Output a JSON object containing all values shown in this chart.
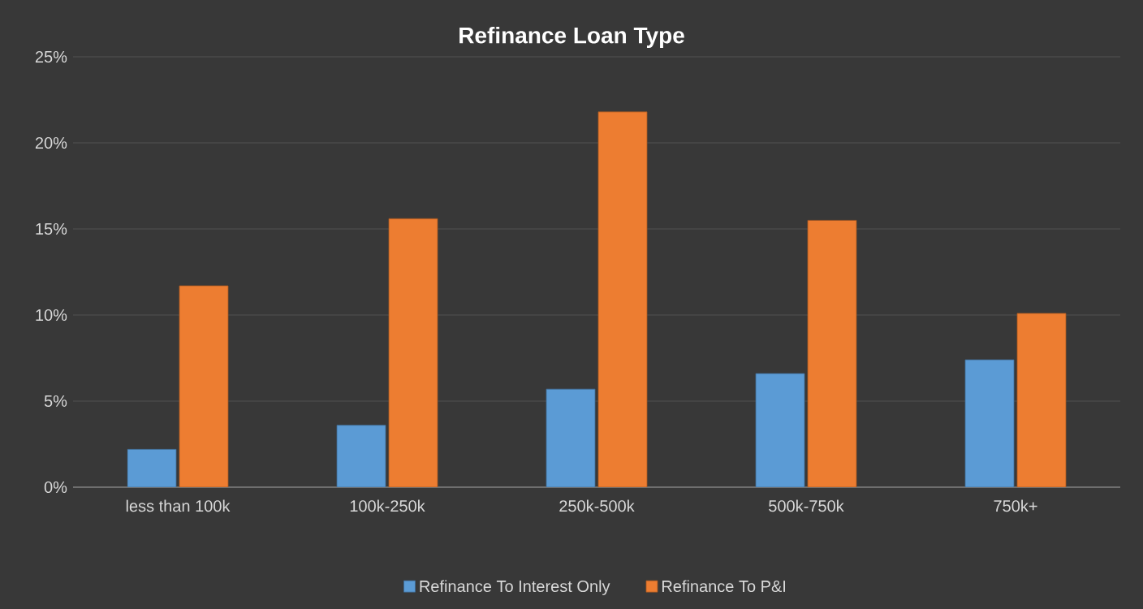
{
  "chart_data": {
    "type": "bar",
    "title": "Refinance Loan Type",
    "categories": [
      "less than 100k",
      "100k-250k",
      "250k-500k",
      "500k-750k",
      "750k+"
    ],
    "series": [
      {
        "name": "Refinance To Interest Only",
        "color": "#5b9bd5",
        "values": [
          2.2,
          3.6,
          5.7,
          6.6,
          7.4
        ]
      },
      {
        "name": "Refinance To P&I",
        "color": "#ed7d31",
        "values": [
          11.7,
          15.6,
          21.8,
          15.5,
          10.1
        ]
      }
    ],
    "ylim": [
      0,
      25
    ],
    "yticks": [
      {
        "value": 0,
        "label": "0%"
      },
      {
        "value": 5,
        "label": "5%"
      },
      {
        "value": 10,
        "label": "10%"
      },
      {
        "value": 15,
        "label": "15%"
      },
      {
        "value": 20,
        "label": "20%"
      },
      {
        "value": 25,
        "label": "25%"
      }
    ],
    "grid": "y",
    "legend": "bottom"
  }
}
